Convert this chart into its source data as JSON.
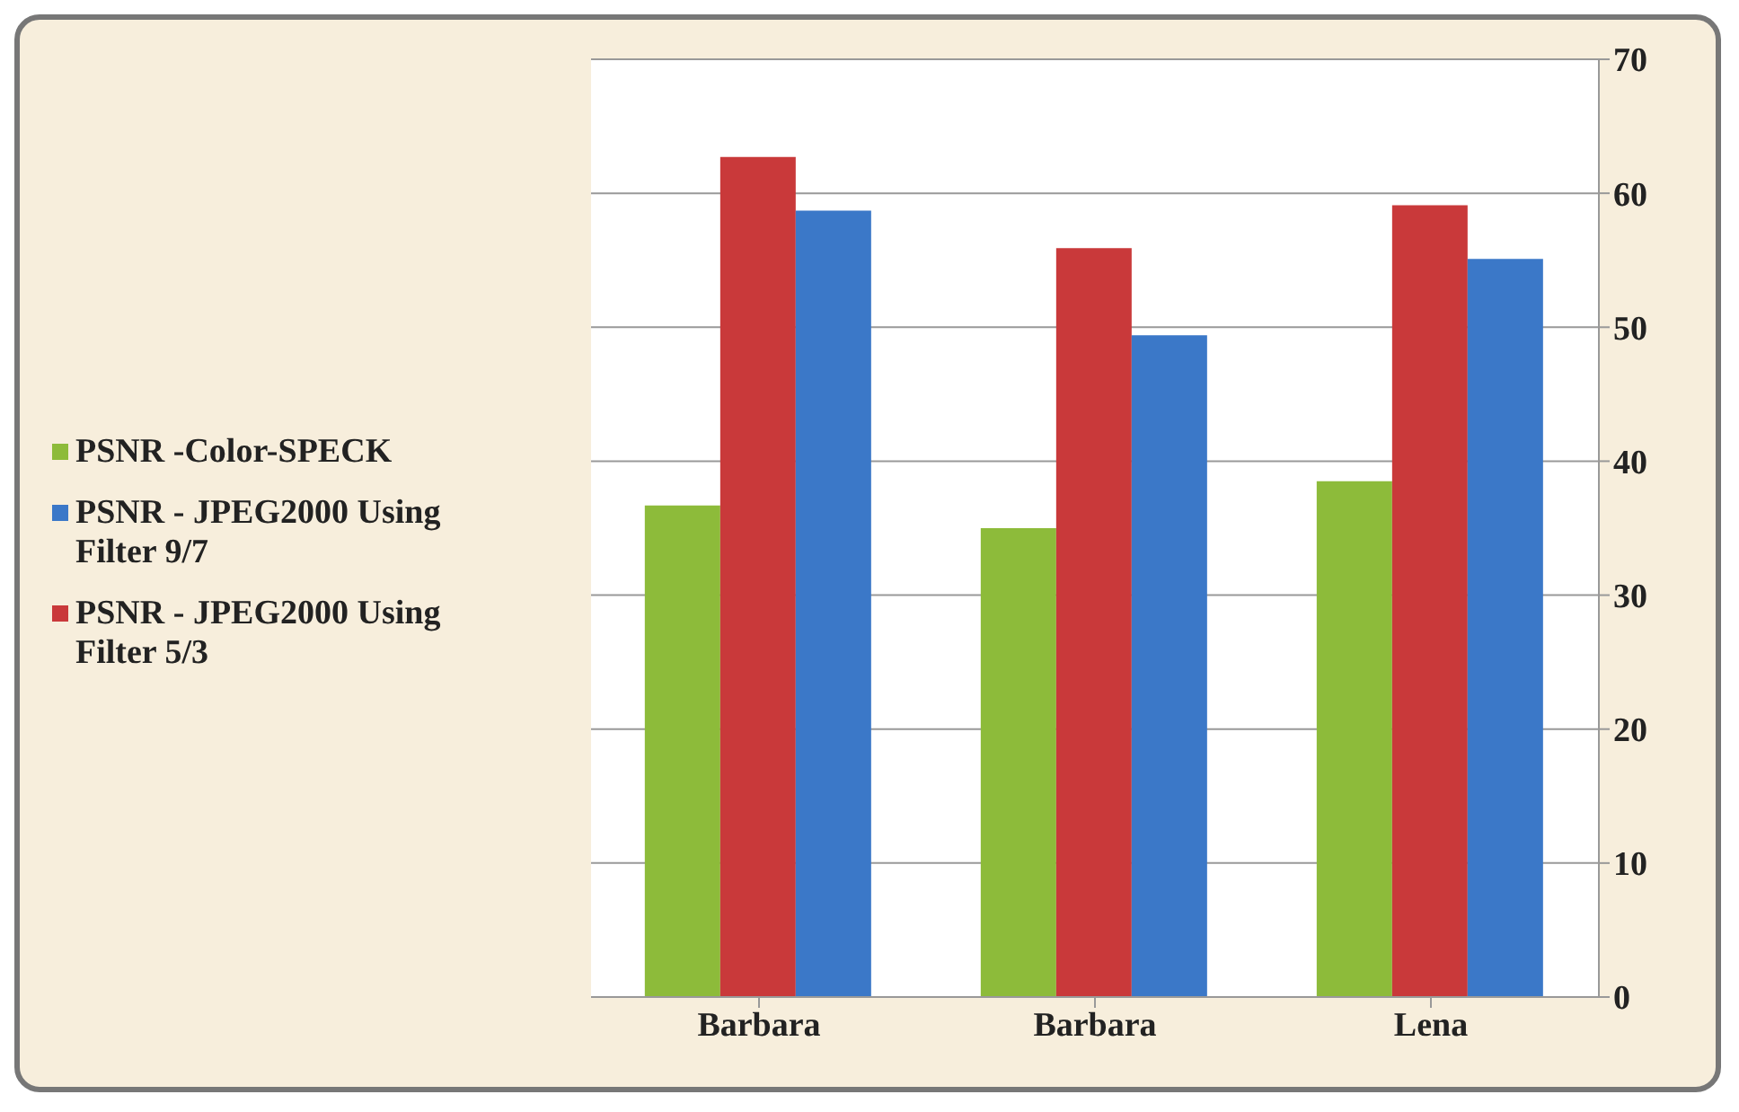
{
  "chart_data": {
    "type": "bar",
    "categories": [
      "Barbara",
      "Barbara",
      "Lena"
    ],
    "series": [
      {
        "name": "PSNR -Color-SPECK",
        "color": "#8dbb3a",
        "values": [
          36.7,
          35.0,
          38.5
        ]
      },
      {
        "name": "PSNR - JPEG2000 Using Filter 5/3",
        "color": "#c9393a",
        "values": [
          62.7,
          55.9,
          59.1
        ]
      },
      {
        "name": "PSNR - JPEG2000 Using Filter 9/7",
        "color": "#3b78c8",
        "values": [
          58.7,
          49.4,
          55.1
        ]
      }
    ],
    "ylim": [
      0,
      70
    ],
    "yticks": [
      0,
      10,
      20,
      30,
      40,
      50,
      60,
      70
    ],
    "grid": "y",
    "legend": "left"
  }
}
